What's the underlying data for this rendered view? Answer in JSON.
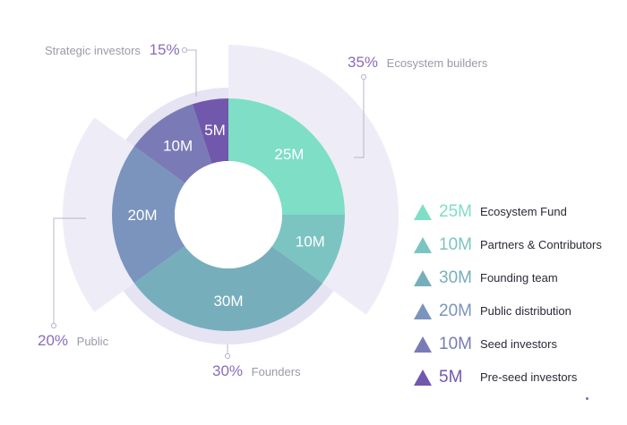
{
  "chart_data": {
    "type": "pie",
    "variant": "donut",
    "start_angle_deg": 0,
    "direction": "clockwise",
    "inner_slices": [
      {
        "label": "25M",
        "value": 25,
        "color": "#7edec6"
      },
      {
        "label": "10M",
        "value": 10,
        "color": "#7cc4c2"
      },
      {
        "label": "30M",
        "value": 30,
        "color": "#77aebc"
      },
      {
        "label": "20M",
        "value": 20,
        "color": "#7a94bd"
      },
      {
        "label": "10M",
        "value": 10,
        "color": "#7a7bb6"
      },
      {
        "label": "5M",
        "value": 5,
        "color": "#7158ad"
      }
    ],
    "outer_groups": [
      {
        "pct": "35%",
        "label": "Ecosystem builders",
        "value": 35,
        "color": "#eeedf7"
      },
      {
        "pct": "30%",
        "label": "Founders",
        "value": 30,
        "color": "#e6e3f3"
      },
      {
        "pct": "20%",
        "label": "Public",
        "value": 20,
        "color": "#eeedf7"
      },
      {
        "pct": "15%",
        "label": "Strategic investors",
        "value": 15,
        "color": "#e6e3f3"
      }
    ],
    "legend": [
      {
        "value": "25M",
        "name": "Ecosystem Fund",
        "color": "#7edec6"
      },
      {
        "value": "10M",
        "name": "Partners & Contributors",
        "color": "#7cc4c2"
      },
      {
        "value": "30M",
        "name": "Founding team",
        "color": "#77aebc"
      },
      {
        "value": "20M",
        "name": "Public distribution",
        "color": "#7a94bd"
      },
      {
        "value": "10M",
        "name": "Seed investors",
        "color": "#7a7bb6"
      },
      {
        "value": "5M",
        "name": "Pre-seed investors",
        "color": "#7158ad"
      }
    ],
    "legend_placement": "right"
  }
}
